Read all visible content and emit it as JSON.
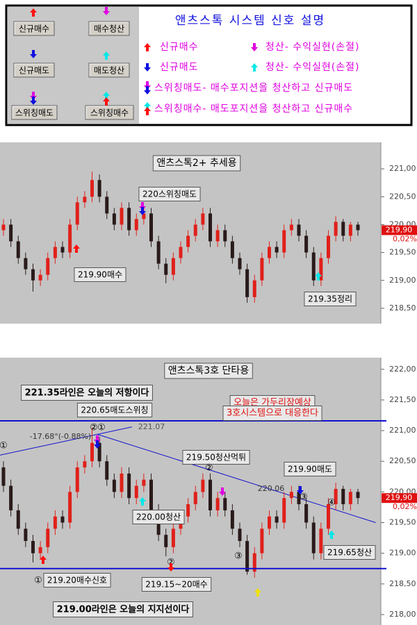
{
  "legend_panel": {
    "buttons": [
      "신규매수",
      "매수청산",
      "신규매도",
      "매도청산",
      "스위칭매도",
      "스위칭매수"
    ],
    "title": "앤츠스톡 시스템 신호 설명",
    "rows": [
      "신규매수",
      "청산- 수익실현(손절)",
      "신규매도",
      "청산- 수익실현(손절)",
      "스위칭매도- 매수포지션을 청산하고 신규매도",
      "스위칭매수- 매도포지션을 청산하고 신규매수"
    ]
  },
  "chart_data": [
    {
      "type": "candlestick",
      "title": "앤츠스톡2+ 추세용",
      "open": [
        219.9,
        220.0,
        219.7,
        219.4,
        219.2,
        219.0,
        219.1,
        219.4,
        219.6,
        219.5,
        220.0,
        220.4,
        220.5,
        220.8,
        220.5,
        220.2,
        220.0,
        220.3,
        219.9,
        220.1,
        220.2,
        219.7,
        219.3,
        219.1,
        219.4,
        219.6,
        219.8,
        220.0,
        220.2,
        219.7,
        219.9,
        219.7,
        219.4,
        219.2,
        218.7,
        219.0,
        219.4,
        219.6,
        219.5,
        219.9,
        220.0,
        219.8,
        219.5,
        219.0,
        219.4,
        219.8,
        220.05,
        219.8,
        220.0
      ],
      "high": [
        220.1,
        220.1,
        219.8,
        219.5,
        219.3,
        219.2,
        219.5,
        219.7,
        219.7,
        220.1,
        220.5,
        220.6,
        220.95,
        220.9,
        220.6,
        220.3,
        220.4,
        220.4,
        220.2,
        220.3,
        220.3,
        219.8,
        219.4,
        219.5,
        219.7,
        219.9,
        220.1,
        220.3,
        220.3,
        220.0,
        220.0,
        219.8,
        219.5,
        219.3,
        219.1,
        219.5,
        219.7,
        219.7,
        220.0,
        220.1,
        220.1,
        219.9,
        219.6,
        219.5,
        219.9,
        220.15,
        220.1,
        220.05,
        220.05
      ],
      "low": [
        219.8,
        219.6,
        219.3,
        219.1,
        218.8,
        218.9,
        219.0,
        219.3,
        219.4,
        219.4,
        219.9,
        220.3,
        220.4,
        220.4,
        220.1,
        219.9,
        219.9,
        219.8,
        219.8,
        220.0,
        219.6,
        219.2,
        218.95,
        219.0,
        219.3,
        219.5,
        219.7,
        219.9,
        219.6,
        219.6,
        219.6,
        219.3,
        219.1,
        218.6,
        218.6,
        218.9,
        219.3,
        219.4,
        219.4,
        219.8,
        219.7,
        219.4,
        218.9,
        218.9,
        219.3,
        219.7,
        219.7,
        219.7,
        219.8
      ],
      "close": [
        220.0,
        219.7,
        219.4,
        219.2,
        219.0,
        219.1,
        219.4,
        219.6,
        219.5,
        220.0,
        220.4,
        220.5,
        220.8,
        220.5,
        220.2,
        220.0,
        220.3,
        219.9,
        220.1,
        220.2,
        219.7,
        219.3,
        219.1,
        219.4,
        219.6,
        219.8,
        220.0,
        220.2,
        219.7,
        219.9,
        219.7,
        219.4,
        219.2,
        218.7,
        219.0,
        219.4,
        219.6,
        219.5,
        219.9,
        220.0,
        219.8,
        219.5,
        219.0,
        219.4,
        219.8,
        220.05,
        219.8,
        220.0,
        219.9
      ],
      "up_color": "#e0201a",
      "down_color": "#2a1a1a",
      "ylim": [
        218.225,
        221.475
      ],
      "yticks": [
        {
          "value": 218.5,
          "label": "218,50"
        },
        {
          "value": 219,
          "label": "219,00"
        },
        {
          "value": 219.5,
          "label": "219,50"
        },
        {
          "value": 220,
          "label": "220,00"
        },
        {
          "value": 220.5,
          "label": "220,50"
        },
        {
          "value": 221,
          "label": "221,00"
        }
      ],
      "last": {
        "value": 219.9,
        "label": "219,90"
      },
      "change_label": "0,02%",
      "annotations": [
        "220스위칭매도",
        "219.90매수",
        "219.35정리"
      ]
    },
    {
      "type": "candlestick",
      "title": "앤츠스톡3호 단타용",
      "open": [
        220.4,
        220.1,
        219.7,
        219.4,
        219.2,
        219.0,
        219.1,
        219.4,
        219.6,
        219.5,
        220.0,
        220.4,
        220.5,
        220.8,
        220.5,
        220.2,
        220.0,
        220.3,
        219.9,
        220.1,
        220.2,
        219.7,
        219.3,
        219.1,
        219.4,
        219.6,
        219.8,
        220.0,
        220.2,
        219.7,
        219.9,
        219.7,
        219.4,
        219.2,
        218.7,
        219.0,
        219.4,
        219.6,
        219.5,
        219.9,
        220.0,
        219.8,
        219.5,
        219.0,
        219.4,
        219.8,
        220.05,
        219.8,
        220.0
      ],
      "high": [
        220.5,
        220.2,
        219.8,
        219.5,
        219.3,
        219.2,
        219.5,
        219.7,
        219.7,
        220.1,
        220.5,
        220.6,
        221.05,
        220.9,
        220.6,
        220.3,
        220.4,
        220.4,
        220.2,
        220.3,
        220.3,
        219.8,
        219.4,
        219.5,
        219.7,
        219.9,
        220.1,
        220.3,
        220.3,
        220.0,
        220.0,
        219.8,
        219.5,
        219.3,
        219.1,
        219.5,
        219.7,
        219.7,
        220.0,
        220.1,
        220.1,
        219.9,
        219.6,
        219.5,
        219.9,
        220.15,
        220.1,
        220.05,
        220.05
      ],
      "low": [
        220.0,
        219.6,
        219.3,
        219.1,
        218.85,
        218.9,
        219.0,
        219.3,
        219.4,
        219.4,
        219.9,
        220.3,
        220.4,
        220.4,
        220.1,
        219.9,
        219.9,
        219.8,
        219.8,
        220.0,
        219.6,
        219.2,
        218.95,
        219.0,
        219.3,
        219.5,
        219.7,
        219.9,
        219.6,
        219.6,
        219.6,
        219.3,
        219.1,
        218.65,
        218.6,
        218.9,
        219.3,
        219.4,
        219.4,
        219.8,
        219.7,
        219.4,
        218.9,
        218.9,
        219.3,
        219.7,
        219.7,
        219.7,
        219.8
      ],
      "close": [
        220.1,
        219.7,
        219.4,
        219.2,
        219.0,
        219.1,
        219.4,
        219.6,
        219.5,
        220.0,
        220.4,
        220.5,
        220.8,
        220.5,
        220.2,
        220.0,
        220.3,
        219.9,
        220.1,
        220.2,
        219.7,
        219.3,
        219.1,
        219.4,
        219.6,
        219.8,
        220.0,
        220.2,
        219.7,
        219.9,
        219.7,
        219.4,
        219.2,
        218.7,
        219.0,
        219.4,
        219.6,
        219.5,
        219.9,
        220.0,
        219.8,
        219.5,
        219.0,
        219.4,
        219.8,
        220.05,
        219.8,
        220.0,
        219.9
      ],
      "up_color": "#e0201a",
      "down_color": "#2a1a1a",
      "ylim": [
        217.83,
        222.19
      ],
      "yticks": [
        {
          "value": 218,
          "label": "218,00"
        },
        {
          "value": 218.5,
          "label": "218,50"
        },
        {
          "value": 219,
          "label": "219,00"
        },
        {
          "value": 219.5,
          "label": "219,50"
        },
        {
          "value": 220,
          "label": "220,00"
        },
        {
          "value": 220.5,
          "label": "220,50"
        },
        {
          "value": 221,
          "label": "221,00"
        },
        {
          "value": 221.5,
          "label": "221,50"
        },
        {
          "value": 222,
          "label": "222,00"
        }
      ],
      "last": {
        "value": 219.9,
        "label": "219,90"
      },
      "change_label": "0,02%",
      "hlines": [
        221.16,
        218.75
      ],
      "hline_color": "#1010d0",
      "trendlines": [
        {
          "x": [
            -0.5,
            17.4
          ],
          "y": [
            220.6,
            221.06
          ]
        },
        {
          "x": [
            12.7,
            50.4
          ],
          "y": [
            220.94,
            219.5
          ]
        }
      ],
      "annotations": [
        "221.35라인은 오늘의 저항이다",
        "220.65매도스위칭",
        "오늘은 가두리장예상",
        "3호시스템으로 대응한다",
        "-17.68°(-0.88%)",
        "221.07",
        "219.50청산먹튀",
        "219.90매도",
        "220.06",
        "220.00청산",
        "219.65청산",
        "219.20매수신호",
        "219.15~20매수",
        "219.00라인은 오늘의 지지선이다",
        "①",
        "②",
        "①",
        "②",
        "③",
        "④",
        "②",
        "③",
        "①"
      ]
    }
  ]
}
